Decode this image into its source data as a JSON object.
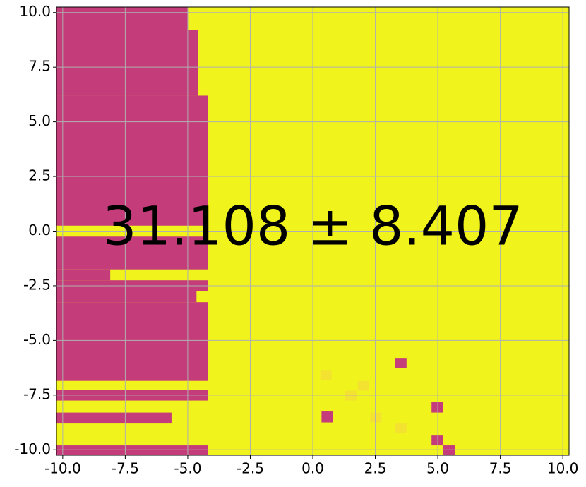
{
  "chart_data": {
    "type": "region",
    "annotation": "31.108 ± 8.407",
    "background": "#f0f31c",
    "grid": true,
    "xlim": [
      -10.25,
      10.25
    ],
    "ylim": [
      -10.25,
      10.25
    ],
    "xticks": [
      {
        "value": -10,
        "label": "-10.0"
      },
      {
        "value": -7.5,
        "label": "-7.5"
      },
      {
        "value": -5,
        "label": "-5.0"
      },
      {
        "value": -2.5,
        "label": "-2.5"
      },
      {
        "value": 0,
        "label": "0.0"
      },
      {
        "value": 2.5,
        "label": "2.5"
      },
      {
        "value": 5,
        "label": "5.0"
      },
      {
        "value": 7.5,
        "label": "7.5"
      },
      {
        "value": 10,
        "label": "10.0"
      }
    ],
    "yticks": [
      {
        "value": -10,
        "label": "-10.0"
      },
      {
        "value": -7.5,
        "label": "-7.5"
      },
      {
        "value": -5,
        "label": "-5.0"
      },
      {
        "value": -2.5,
        "label": "-2.5"
      },
      {
        "value": 0,
        "label": "0.0"
      },
      {
        "value": 2.5,
        "label": "2.5"
      },
      {
        "value": 5,
        "label": "5.0"
      },
      {
        "value": 7.5,
        "label": "7.5"
      },
      {
        "value": 10,
        "label": "10.0"
      }
    ],
    "regions": [
      {
        "x": [
          -10.25,
          -5.0
        ],
        "y": [
          9.2,
          10.25
        ],
        "color": "#c43c7a"
      },
      {
        "x": [
          -10.25,
          -4.6
        ],
        "y": [
          6.2,
          9.2
        ],
        "color": "#c43c7a"
      },
      {
        "x": [
          -10.25,
          -4.2
        ],
        "y": [
          0.25,
          6.2
        ],
        "color": "#c43c7a"
      },
      {
        "x": [
          -10.25,
          -4.2
        ],
        "y": [
          -1.75,
          -0.25
        ],
        "color": "#c43c7a"
      },
      {
        "x": [
          -10.25,
          -8.1
        ],
        "y": [
          -2.25,
          -1.75
        ],
        "color": "#c43c7a"
      },
      {
        "x": [
          -10.25,
          -4.2
        ],
        "y": [
          -2.75,
          -2.25
        ],
        "color": "#c43c7a"
      },
      {
        "x": [
          -10.25,
          -4.65
        ],
        "y": [
          -3.25,
          -2.75
        ],
        "color": "#c43c7a"
      },
      {
        "x": [
          -10.25,
          -4.2
        ],
        "y": [
          -6.85,
          -3.25
        ],
        "color": "#c43c7a"
      },
      {
        "x": [
          -10.25,
          -4.2
        ],
        "y": [
          -7.75,
          -7.25
        ],
        "color": "#c43c7a"
      },
      {
        "x": [
          -10.25,
          -5.65
        ],
        "y": [
          -8.8,
          -8.3
        ],
        "color": "#c43c7a"
      },
      {
        "x": [
          -10.25,
          -4.2
        ],
        "y": [
          -10.25,
          -9.8
        ],
        "color": "#c43c7a"
      },
      {
        "x": [
          3.3,
          3.75
        ],
        "y": [
          -6.25,
          -5.8
        ],
        "color": "#c43c7a"
      },
      {
        "x": [
          0.35,
          0.8
        ],
        "y": [
          -8.75,
          -8.25
        ],
        "color": "#c43c7a"
      },
      {
        "x": [
          4.75,
          5.2
        ],
        "y": [
          -8.3,
          -7.8
        ],
        "color": "#c43c7a"
      },
      {
        "x": [
          4.75,
          5.2
        ],
        "y": [
          -9.8,
          -9.35
        ],
        "color": "#c43c7a"
      },
      {
        "x": [
          5.2,
          5.7
        ],
        "y": [
          -10.25,
          -9.8
        ],
        "color": "#c43c7a"
      },
      {
        "x": [
          0.3,
          0.75
        ],
        "y": [
          -6.8,
          -6.35
        ],
        "color": "#f3e330"
      },
      {
        "x": [
          1.8,
          2.25
        ],
        "y": [
          -7.3,
          -6.85
        ],
        "color": "#f3e330"
      },
      {
        "x": [
          1.3,
          1.75
        ],
        "y": [
          -7.75,
          -7.3
        ],
        "color": "#f3e330"
      },
      {
        "x": [
          2.3,
          2.75
        ],
        "y": [
          -8.75,
          -8.3
        ],
        "color": "#f3e330"
      },
      {
        "x": [
          3.3,
          3.75
        ],
        "y": [
          -9.25,
          -8.8
        ],
        "color": "#f3e330"
      }
    ]
  }
}
